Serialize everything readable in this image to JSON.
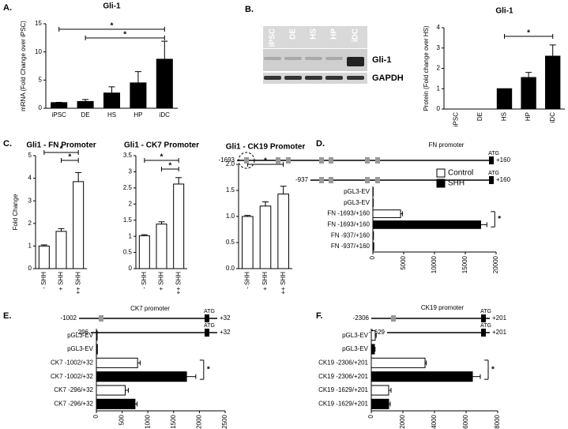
{
  "chart_data": [
    {
      "type": "bar",
      "panel": "A.",
      "title": "Gli-1",
      "y_label": "mRNA (Fold Change over iPSC)",
      "categories": [
        "iPSC",
        "DE",
        "HS",
        "HP",
        "iDC"
      ],
      "values": [
        1,
        1.2,
        2.7,
        4.5,
        8.7
      ],
      "errors": [
        0.05,
        0.35,
        1.1,
        2,
        3.2
      ],
      "color": "#000000",
      "ylim": [
        0,
        15
      ],
      "yticks": [
        0,
        5,
        10,
        15
      ],
      "significance": [
        "*",
        "*"
      ]
    },
    {
      "type": "bar",
      "panel": "B.",
      "title": "Gli-1",
      "y_label": "Protein (Fold change over HS)",
      "blot_lanes": [
        "iPSC",
        "DE",
        "HS",
        "HP",
        "iDC"
      ],
      "blot_rows": [
        "Gli-1",
        "GAPDH"
      ],
      "categories": [
        "iPSC",
        "DE",
        "HS",
        "HP",
        "iDC"
      ],
      "values": [
        0,
        0,
        1,
        1.55,
        2.6
      ],
      "errors": [
        null,
        null,
        null,
        0.25,
        0.55
      ],
      "color": "#000000",
      "ylim": [
        0,
        4
      ],
      "yticks": [
        0,
        1,
        2,
        3,
        4
      ],
      "significance": [
        "*"
      ]
    },
    {
      "type": "bar",
      "panel": "C.",
      "title": "Gli1 - FN Promoter",
      "y_label": "Fold Change",
      "categories": [
        "- SHH",
        "+ SHH",
        "++ SHH"
      ],
      "values": [
        1.0,
        1.65,
        3.85
      ],
      "errors": [
        0.05,
        0.12,
        0.4
      ],
      "color": "#ffffff",
      "ylim": [
        0,
        5
      ],
      "yticks": [
        0,
        1,
        2,
        3,
        4,
        5
      ],
      "significance": [
        "*",
        "*"
      ]
    },
    {
      "type": "bar",
      "title": "Gli1 - CK7 Promoter",
      "categories": [
        "- SHH",
        "+ SHH",
        "++ SHH"
      ],
      "values": [
        1.02,
        1.38,
        2.62
      ],
      "errors": [
        0.03,
        0.07,
        0.2
      ],
      "color": "#ffffff",
      "ylim": [
        0,
        3.5
      ],
      "yticks": [
        0,
        0.5,
        1,
        1.5,
        2,
        2.5,
        3,
        3.5
      ],
      "significance": [
        "*",
        "*"
      ]
    },
    {
      "type": "bar",
      "title": "Gli1 - CK19 Promoter",
      "categories": [
        "- SHH",
        "+ SHH",
        "++ SHH"
      ],
      "values": [
        1.0,
        1.2,
        1.43
      ],
      "errors": [
        0.02,
        0.08,
        0.15
      ],
      "color": "#ffffff",
      "ylim": [
        0,
        2
      ],
      "yticks": [
        {
          "value": 0,
          "label": "0.0"
        },
        {
          "value": 0.5,
          "label": "0.5"
        },
        {
          "value": 1,
          "label": "1.0"
        },
        {
          "value": 1.5,
          "label": "1.5"
        },
        {
          "value": 2,
          "label": "2.0"
        }
      ],
      "significance": [
        "*"
      ]
    },
    {
      "type": "hbar",
      "panel": "D.",
      "diagram": {
        "title": "FN promoter",
        "constructs": [
          {
            "start": "-1693",
            "end": "+160",
            "atg": "ATG"
          },
          {
            "start": "-937",
            "end": "+160",
            "atg": "ATG"
          }
        ]
      },
      "categories": [
        "pGL3-EV",
        "pGL3-EV",
        "FN -1693/+160",
        "FN -1693/+160",
        "FN -937/+160",
        "FN -937/+160"
      ],
      "series": [
        {
          "name": "Control",
          "color": "#ffffff",
          "values": [
            50,
            null,
            4500,
            null,
            100,
            null
          ],
          "errors": [
            null,
            null,
            300,
            null,
            null,
            null
          ]
        },
        {
          "name": "SHH",
          "color": "#000000",
          "values": [
            null,
            60,
            null,
            17500,
            null,
            150
          ],
          "errors": [
            null,
            null,
            null,
            1000,
            null,
            null
          ]
        }
      ],
      "xlim": [
        0,
        20000
      ],
      "xticks": [
        0,
        5000,
        10000,
        15000,
        20000
      ],
      "significance": [
        "*"
      ]
    },
    {
      "type": "hbar",
      "panel": "E.",
      "diagram": {
        "title": "CK7 promoter",
        "constructs": [
          {
            "start": "-1002",
            "end": "+32",
            "atg": "ATG"
          },
          {
            "start": "-296",
            "end": "+32",
            "atg": "ATG"
          }
        ]
      },
      "categories": [
        "pGL3-EV",
        "pGL3-EV",
        "CK7 -1002/+32",
        "CK7 -1002/+32",
        "CK7 -296/+32",
        "CK7 -296/+32"
      ],
      "series": [
        {
          "color": "#ffffff",
          "values": [
            15,
            null,
            800,
            null,
            560,
            null
          ],
          "errors": [
            null,
            null,
            50,
            null,
            60,
            null
          ]
        },
        {
          "color": "#000000",
          "values": [
            null,
            20,
            null,
            1750,
            null,
            750
          ],
          "errors": [
            null,
            null,
            null,
            180,
            null,
            40
          ]
        }
      ],
      "xlim": [
        0,
        2500
      ],
      "xticks": [
        0,
        500,
        1000,
        1500,
        2000,
        2500
      ],
      "significance": [
        "*"
      ]
    },
    {
      "type": "hbar",
      "panel": "F.",
      "diagram": {
        "title": "CK19 promoter",
        "constructs": [
          {
            "start": "-2306",
            "end": "+201",
            "atg": "ATG"
          },
          {
            "start": "-1629",
            "end": "+201",
            "atg": "ATG"
          }
        ]
      },
      "categories": [
        "pGL3-EV",
        "pGL3-EV",
        "CK19 -2306/+201",
        "CK19 -2306/+201",
        "CK19 -1629/+201",
        "CK19 -1629/+201"
      ],
      "series": [
        {
          "color": "#ffffff",
          "values": [
            250,
            null,
            3400,
            null,
            1100,
            null
          ],
          "errors": [
            60,
            null,
            80,
            null,
            150,
            null
          ]
        },
        {
          "color": "#000000",
          "values": [
            null,
            200,
            null,
            6400,
            null,
            1100
          ],
          "errors": [
            null,
            40,
            null,
            500,
            null,
            100
          ]
        }
      ],
      "xlim": [
        0,
        8000
      ],
      "xticks": [
        0,
        2000,
        4000,
        6000,
        8000
      ],
      "significance": [
        "*"
      ]
    }
  ]
}
